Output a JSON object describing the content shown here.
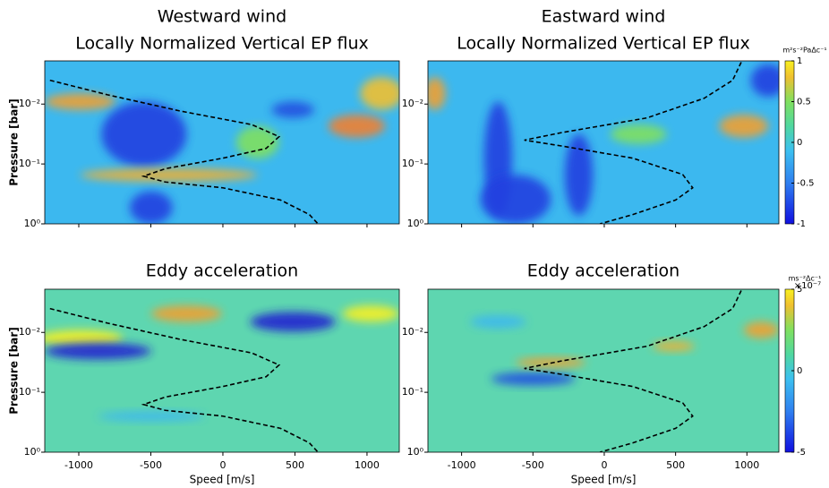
{
  "chart_data": [
    {
      "type": "contour",
      "title": "Westward wind",
      "subtitle": "Locally Normalized Vertical EP flux",
      "ylabel": "Pressure [bar]",
      "log_y": true,
      "grid": false,
      "xlim": [
        -1236,
        1224
      ],
      "xticks": [
        -1000,
        -500,
        0,
        500,
        1000
      ],
      "ylim": [
        1,
        0.0019
      ],
      "yticks": [
        {
          "value": 1,
          "label": "10⁰"
        },
        {
          "value": 0.1,
          "label": "10⁻¹"
        },
        {
          "value": 0.01,
          "label": "10⁻²"
        }
      ],
      "line": {
        "color": "#000000",
        "dashed": true,
        "x": [
          -1200,
          -800,
          -300,
          200,
          390,
          300,
          0,
          -400,
          -550,
          -400,
          0,
          400,
          600,
          660
        ],
        "y": [
          0.004,
          0.007,
          0.013,
          0.022,
          0.035,
          0.055,
          0.08,
          0.12,
          0.16,
          0.2,
          0.25,
          0.4,
          0.7,
          1
        ]
      }
    },
    {
      "type": "contour",
      "title": "Eastward wind",
      "subtitle": "Locally Normalized Vertical EP flux",
      "log_y": true,
      "grid": false,
      "xlim": [
        -1236,
        1224
      ],
      "xticks": [
        -1000,
        -500,
        0,
        500,
        1000
      ],
      "ylim": [
        1,
        0.0019
      ],
      "yticks": [
        {
          "value": 1,
          "label": "10⁰"
        },
        {
          "value": 0.1,
          "label": "10⁻¹"
        },
        {
          "value": 0.01,
          "label": "10⁻²"
        }
      ],
      "line": {
        "color": "#000000",
        "dashed": true,
        "x": [
          960,
          900,
          700,
          300,
          -300,
          -560,
          -300,
          200,
          550,
          620,
          500,
          200,
          -30
        ],
        "y": [
          0.002,
          0.004,
          0.008,
          0.017,
          0.03,
          0.04,
          0.05,
          0.08,
          0.15,
          0.25,
          0.4,
          0.7,
          1
        ]
      },
      "colorbar": {
        "label": "m²s⁻²PaΔc⁻¹",
        "lim": [
          -1,
          1
        ],
        "ticks": [
          1,
          0.5,
          0,
          -0.5,
          -1
        ]
      }
    },
    {
      "type": "contour",
      "title": "Eddy acceleration",
      "ylabel": "Pressure [bar]",
      "xlabel": "Speed [m/s]",
      "log_y": true,
      "grid": false,
      "xlim": [
        -1236,
        1224
      ],
      "xticks": [
        -1000,
        -500,
        0,
        500,
        1000
      ],
      "ylim": [
        1,
        0.0019
      ],
      "yticks": [
        {
          "value": 1,
          "label": "10⁰"
        },
        {
          "value": 0.1,
          "label": "10⁻¹"
        },
        {
          "value": 0.01,
          "label": "10⁻²"
        }
      ],
      "line": {
        "color": "#000000",
        "dashed": true,
        "x": [
          -1200,
          -800,
          -300,
          200,
          390,
          300,
          0,
          -400,
          -550,
          -400,
          0,
          400,
          600,
          660
        ],
        "y": [
          0.004,
          0.007,
          0.013,
          0.022,
          0.035,
          0.055,
          0.08,
          0.12,
          0.16,
          0.2,
          0.25,
          0.4,
          0.7,
          1
        ]
      }
    },
    {
      "type": "contour",
      "title": "Eddy acceleration",
      "xlabel": "Speed [m/s]",
      "log_y": true,
      "grid": false,
      "xlim": [
        -1236,
        1224
      ],
      "xticks": [
        -1000,
        -500,
        0,
        500,
        1000
      ],
      "ylim": [
        1,
        0.0019
      ],
      "yticks": [
        {
          "value": 1,
          "label": "10⁰"
        },
        {
          "value": 0.1,
          "label": "10⁻¹"
        },
        {
          "value": 0.01,
          "label": "10⁻²"
        }
      ],
      "line": {
        "color": "#000000",
        "dashed": true,
        "x": [
          960,
          900,
          700,
          300,
          -300,
          -560,
          -300,
          200,
          550,
          620,
          500,
          200,
          -30
        ],
        "y": [
          0.002,
          0.004,
          0.008,
          0.017,
          0.03,
          0.04,
          0.05,
          0.08,
          0.15,
          0.25,
          0.4,
          0.7,
          1
        ]
      },
      "colorbar": {
        "label": "ms⁻²Δc⁻¹",
        "exponent": "×10⁻⁷",
        "lim": [
          -5,
          5
        ],
        "ticks": [
          5,
          0,
          -5
        ]
      }
    }
  ]
}
